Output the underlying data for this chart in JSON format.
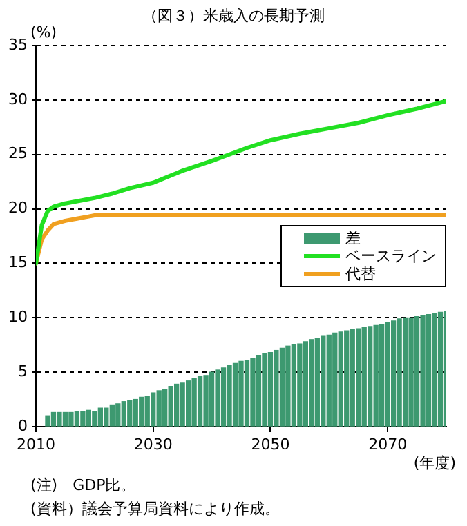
{
  "chart_data": {
    "type": "bar",
    "title": "（図３）米歳入の長期予測",
    "ylabel": "(%)",
    "xlabel": "(年度)",
    "xlim": [
      2010,
      2080
    ],
    "xticks": [
      2010,
      2030,
      2050,
      2070
    ],
    "ylim": [
      0,
      35
    ],
    "yticks": [
      0,
      5,
      10,
      15,
      20,
      25,
      30,
      35
    ],
    "grid": "y",
    "legend": "right",
    "series": [
      {
        "name": "差",
        "color": "#3d9970",
        "x": [
          2012,
          2013,
          2014,
          2015,
          2016,
          2017,
          2018,
          2019,
          2020,
          2021,
          2022,
          2023,
          2024,
          2025,
          2026,
          2027,
          2028,
          2029,
          2030,
          2031,
          2032,
          2033,
          2034,
          2035,
          2036,
          2037,
          2038,
          2039,
          2040,
          2041,
          2042,
          2043,
          2044,
          2045,
          2046,
          2047,
          2048,
          2049,
          2050,
          2051,
          2052,
          2053,
          2054,
          2055,
          2056,
          2057,
          2058,
          2059,
          2060,
          2061,
          2062,
          2063,
          2064,
          2065,
          2066,
          2067,
          2068,
          2069,
          2070,
          2071,
          2072,
          2073,
          2074,
          2075,
          2076,
          2077,
          2078,
          2079,
          2080
        ],
        "values": [
          1.0,
          1.3,
          1.3,
          1.3,
          1.3,
          1.4,
          1.4,
          1.5,
          1.4,
          1.7,
          1.7,
          2.0,
          2.1,
          2.3,
          2.4,
          2.5,
          2.7,
          2.8,
          3.1,
          3.3,
          3.4,
          3.7,
          3.9,
          4.0,
          4.2,
          4.4,
          4.6,
          4.7,
          5.0,
          5.2,
          5.4,
          5.6,
          5.8,
          6.0,
          6.1,
          6.3,
          6.5,
          6.7,
          6.8,
          7.0,
          7.2,
          7.4,
          7.5,
          7.6,
          7.8,
          8.0,
          8.1,
          8.3,
          8.4,
          8.6,
          8.7,
          8.8,
          8.9,
          9.0,
          9.1,
          9.2,
          9.3,
          9.4,
          9.6,
          9.7,
          9.9,
          10.0,
          10.0,
          10.1,
          10.2,
          10.3,
          10.4,
          10.5,
          10.6
        ]
      },
      {
        "name": "ベースライン",
        "type": "line",
        "color": "#22e022",
        "x": [
          2010,
          2011,
          2012,
          2013,
          2015,
          2018,
          2020,
          2023,
          2026,
          2030,
          2035,
          2040,
          2043,
          2046,
          2050,
          2055,
          2060,
          2065,
          2070,
          2075,
          2080
        ],
        "values": [
          15,
          18.5,
          19.8,
          20.2,
          20.5,
          20.8,
          21.0,
          21.4,
          21.9,
          22.4,
          23.5,
          24.4,
          25.0,
          25.6,
          26.3,
          26.9,
          27.4,
          27.9,
          28.6,
          29.2,
          29.9
        ]
      },
      {
        "name": "代替",
        "type": "line",
        "color": "#f0a020",
        "x": [
          2010,
          2011,
          2012,
          2013,
          2015,
          2017,
          2019,
          2020,
          2080
        ],
        "values": [
          15,
          17.2,
          18.0,
          18.6,
          18.9,
          19.1,
          19.3,
          19.4,
          19.4
        ]
      }
    ],
    "annotations": [
      "(注)　GDP比。",
      "(資料）議会予算局資料により作成。"
    ]
  }
}
